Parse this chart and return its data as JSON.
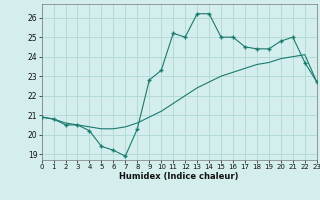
{
  "x_data": [
    0,
    1,
    2,
    3,
    4,
    5,
    6,
    7,
    8,
    9,
    10,
    11,
    12,
    13,
    14,
    15,
    16,
    17,
    18,
    19,
    20,
    21,
    22,
    23
  ],
  "y_line1": [
    20.9,
    20.8,
    20.5,
    20.5,
    20.2,
    19.4,
    19.2,
    18.9,
    20.3,
    22.8,
    23.3,
    25.2,
    25.0,
    26.2,
    26.2,
    25.0,
    25.0,
    24.5,
    24.4,
    24.4,
    24.8,
    25.0,
    23.7,
    22.7
  ],
  "y_line2": [
    20.9,
    20.8,
    20.6,
    20.5,
    20.4,
    20.3,
    20.3,
    20.4,
    20.6,
    20.9,
    21.2,
    21.6,
    22.0,
    22.4,
    22.7,
    23.0,
    23.2,
    23.4,
    23.6,
    23.7,
    23.9,
    24.0,
    24.1,
    22.7
  ],
  "line_color": "#1a7a6e",
  "bg_color": "#d4eeed",
  "grid_color": "#b0d8d5",
  "xlabel": "Humidex (Indice chaleur)",
  "ylim": [
    18.7,
    26.7
  ],
  "xlim": [
    0,
    23
  ],
  "yticks": [
    19,
    20,
    21,
    22,
    23,
    24,
    25,
    26
  ],
  "xticks": [
    0,
    1,
    2,
    3,
    4,
    5,
    6,
    7,
    8,
    9,
    10,
    11,
    12,
    13,
    14,
    15,
    16,
    17,
    18,
    19,
    20,
    21,
    22,
    23
  ]
}
